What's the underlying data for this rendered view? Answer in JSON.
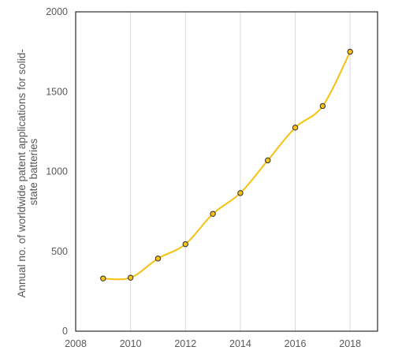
{
  "chart_data": {
    "type": "line",
    "title": "",
    "xlabel": "",
    "ylabel_lines": [
      "Annual no. of worldwide patent applications for solid-",
      "state batteries"
    ],
    "x": [
      2009,
      2010,
      2011,
      2012,
      2013,
      2014,
      2015,
      2016,
      2017,
      2018
    ],
    "series": [
      {
        "values": [
          330,
          335,
          455,
          545,
          735,
          865,
          1070,
          1275,
          1410,
          1750
        ]
      }
    ],
    "xlim": [
      2008,
      2019
    ],
    "ylim": [
      0,
      2000
    ],
    "xticks": [
      2008,
      2010,
      2012,
      2014,
      2016,
      2018
    ],
    "yticks": [
      0,
      500,
      1000,
      1500,
      2000
    ],
    "grid": "vertical",
    "smooth": true,
    "colors": {
      "line": "#f5c211",
      "marker_fill": "#f5c211",
      "marker_edge": "#2b2b2b",
      "grid": "#d9d9d9",
      "axis": "#000000"
    }
  }
}
